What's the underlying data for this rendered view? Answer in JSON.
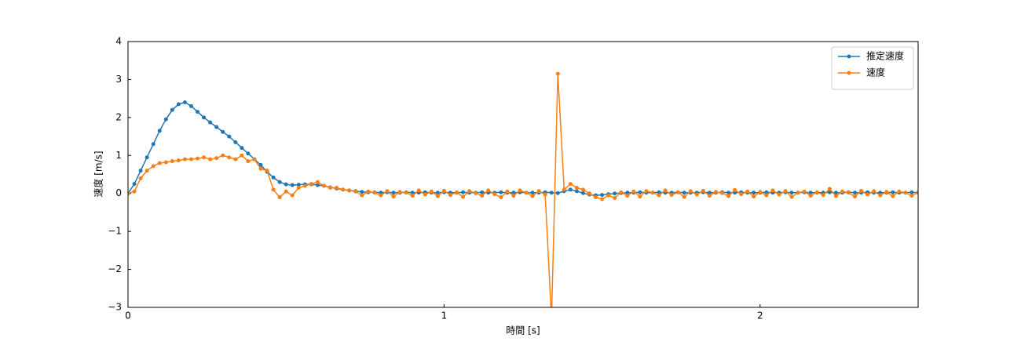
{
  "chart_data": {
    "type": "line",
    "xlabel": "時間 [s]",
    "ylabel": "速度 [m/s]",
    "xlim": [
      0,
      2.5
    ],
    "ylim": [
      -3,
      4
    ],
    "xticks": [
      0,
      1,
      2
    ],
    "yticks": [
      {
        "value": -3,
        "label": "−3"
      },
      {
        "value": -2,
        "label": "−2"
      },
      {
        "value": -1,
        "label": "−1"
      },
      0,
      1,
      2,
      3,
      4
    ],
    "legend": "upper right",
    "x": [
      0,
      0.02,
      0.04,
      0.06,
      0.08,
      0.1,
      0.12,
      0.14,
      0.16,
      0.18,
      0.2,
      0.22,
      0.24,
      0.26,
      0.28,
      0.3,
      0.32,
      0.34,
      0.36,
      0.38,
      0.4,
      0.42,
      0.44,
      0.46,
      0.48,
      0.5,
      0.52,
      0.54,
      0.56,
      0.58,
      0.6,
      0.62,
      0.64,
      0.66,
      0.68,
      0.7,
      0.72,
      0.74,
      0.76,
      0.78,
      0.8,
      0.82,
      0.84,
      0.86,
      0.88,
      0.9,
      0.92,
      0.94,
      0.96,
      0.98,
      1,
      1.02,
      1.04,
      1.06,
      1.08,
      1.1,
      1.12,
      1.14,
      1.16,
      1.18,
      1.2,
      1.22,
      1.24,
      1.26,
      1.28,
      1.3,
      1.32,
      1.34,
      1.36,
      1.38,
      1.4,
      1.42,
      1.44,
      1.46,
      1.48,
      1.5,
      1.52,
      1.54,
      1.56,
      1.58,
      1.6,
      1.62,
      1.64,
      1.66,
      1.68,
      1.7,
      1.72,
      1.74,
      1.76,
      1.78,
      1.8,
      1.82,
      1.84,
      1.86,
      1.88,
      1.9,
      1.92,
      1.94,
      1.96,
      1.98,
      2,
      2.02,
      2.04,
      2.06,
      2.08,
      2.1,
      2.12,
      2.14,
      2.16,
      2.18,
      2.2,
      2.22,
      2.24,
      2.26,
      2.28,
      2.3,
      2.32,
      2.34,
      2.36,
      2.38,
      2.4,
      2.42,
      2.44,
      2.46,
      2.48,
      2.5
    ],
    "series": [
      {
        "name": "推定速度",
        "color": "#1f77b4",
        "values": [
          0,
          0.25,
          0.6,
          0.95,
          1.3,
          1.65,
          1.95,
          2.2,
          2.35,
          2.4,
          2.3,
          2.15,
          2.0,
          1.87,
          1.75,
          1.62,
          1.5,
          1.35,
          1.2,
          1.05,
          0.9,
          0.75,
          0.57,
          0.42,
          0.3,
          0.24,
          0.22,
          0.23,
          0.24,
          0.24,
          0.22,
          0.2,
          0.16,
          0.13,
          0.1,
          0.08,
          0.06,
          0.04,
          0.03,
          0.03,
          0.02,
          0.03,
          0.02,
          0.02,
          0.03,
          0.02,
          0.02,
          0.03,
          0.02,
          0.02,
          0.03,
          0.02,
          0.02,
          0.03,
          0.02,
          0.02,
          0.03,
          0.02,
          0.02,
          0.03,
          0.02,
          0.02,
          0.03,
          0.02,
          0.02,
          0.02,
          0.03,
          0.02,
          0.01,
          0.06,
          0.1,
          0.06,
          0.01,
          -0.03,
          -0.05,
          -0.04,
          -0.02,
          0,
          0.01,
          0.02,
          0.02,
          0.03,
          0.02,
          0.02,
          0.03,
          0.02,
          0.02,
          0.03,
          0.02,
          0.02,
          0.02,
          0.03,
          0.02,
          0.02,
          0.03,
          0.02,
          0.02,
          0.03,
          0.02,
          0.02,
          0.02,
          0.03,
          0.02,
          0.02,
          0.03,
          0.02,
          0.02,
          0.03,
          0.02,
          0.02,
          0.02,
          0.03,
          0.02,
          0.02,
          0.03,
          0.02,
          0.02,
          0.03,
          0.02,
          0.02,
          0.02,
          0.03,
          0.02,
          0.02,
          0.03,
          0.02
        ]
      },
      {
        "name": "速度",
        "color": "#ff7f0e",
        "values": [
          0,
          0.05,
          0.4,
          0.6,
          0.72,
          0.8,
          0.82,
          0.85,
          0.87,
          0.9,
          0.9,
          0.92,
          0.95,
          0.9,
          0.93,
          1.0,
          0.95,
          0.9,
          1.0,
          0.85,
          0.9,
          0.65,
          0.6,
          0.1,
          -0.1,
          0.05,
          -0.05,
          0.15,
          0.2,
          0.25,
          0.3,
          0.2,
          0.15,
          0.15,
          0.1,
          0.08,
          0.05,
          -0.05,
          0.05,
          0.02,
          -0.05,
          0.06,
          -0.08,
          0.04,
          0.02,
          -0.06,
          0.08,
          -0.03,
          0.05,
          -0.07,
          0.07,
          -0.04,
          0.03,
          -0.09,
          0.06,
          0.01,
          -0.06,
          0.08,
          -0.02,
          -0.1,
          0.05,
          -0.06,
          0.08,
          0.02,
          -0.07,
          0.06,
          -0.03,
          -3.3,
          3.15,
          0.1,
          0.25,
          0.15,
          0.1,
          0,
          -0.1,
          -0.15,
          -0.05,
          -0.12,
          0.03,
          -0.06,
          0.05,
          -0.08,
          0.06,
          0.02,
          -0.05,
          0.08,
          -0.04,
          0.03,
          -0.09,
          0.06,
          -0.03,
          0.07,
          -0.06,
          0.04,
          0.01,
          -0.07,
          0.09,
          -0.02,
          0.05,
          -0.08,
          0.04,
          -0.05,
          0.08,
          -0.03,
          0.06,
          -0.09,
          0.02,
          0.05,
          -0.06,
          0.03,
          -0.04,
          0.12,
          -0.07,
          0.05,
          0.02,
          -0.08,
          0.07,
          -0.03,
          0.06,
          -0.05,
          0.04,
          -0.07,
          0.05,
          0.02,
          -0.06,
          0.03
        ]
      }
    ]
  }
}
